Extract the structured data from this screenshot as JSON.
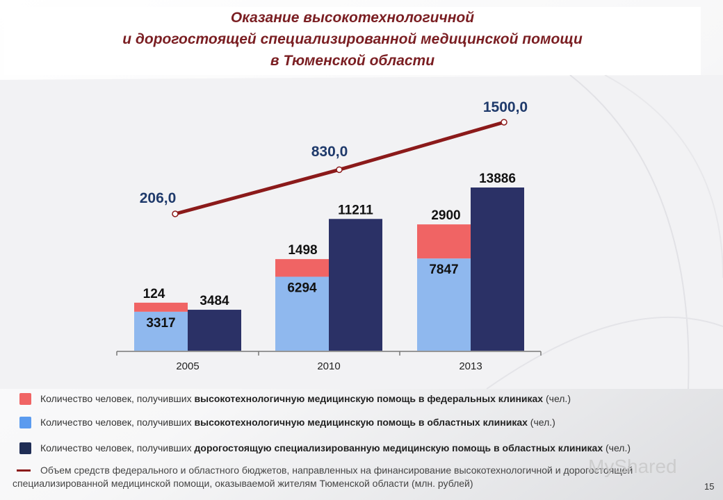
{
  "title": {
    "line1": "Оказание высокотехнологичной",
    "line2": "и дорогостоящей специализированной медицинской помощи",
    "line3": "в Тюменской области"
  },
  "colors": {
    "federal": "#f06464",
    "regional_hitech": "#8fb8ee",
    "costly": "#2b3166",
    "funding_line": "#8b1a1a",
    "title": "#7a1e22"
  },
  "chart_data": {
    "type": "bar",
    "categories": [
      "2005",
      "2010",
      "2013"
    ],
    "stacked_bar": {
      "bottom_values": [
        3317,
        6294,
        7847
      ],
      "top_values": [
        124,
        1498,
        2900
      ]
    },
    "dark_bar_values": [
      3484,
      11211,
      13886
    ],
    "line_values": [
      "206,0",
      "830,0",
      "1500,0"
    ],
    "line_numeric": [
      206,
      830,
      1500
    ],
    "grid": false
  },
  "legend": {
    "item1": {
      "prefix": "Количество человек, получивших ",
      "bold": "высокотехнологичную медицинскую помощь в федеральных клиниках",
      "suffix": " (чел.)"
    },
    "item2": {
      "prefix": "Количество человек, получивших ",
      "bold": "высокотехнологичную медицинскую помощь в областных клиниках",
      "suffix": " (чел.)"
    },
    "item3": {
      "prefix": "Количество человек, получивших ",
      "bold": "дорогостоящую специализированную медицинскую помощь в областных клиниках",
      "suffix": " (чел.)"
    },
    "item4_line1": "Объем средств федерального и областного бюджетов, направленных на финансирование высокотехнологичной и дорогостоящей",
    "item4_line2": "специализированной медицинской помощи, оказываемой жителям Тюменской области (млн. рублей)"
  },
  "page_number": "15",
  "watermark": "MyShared"
}
